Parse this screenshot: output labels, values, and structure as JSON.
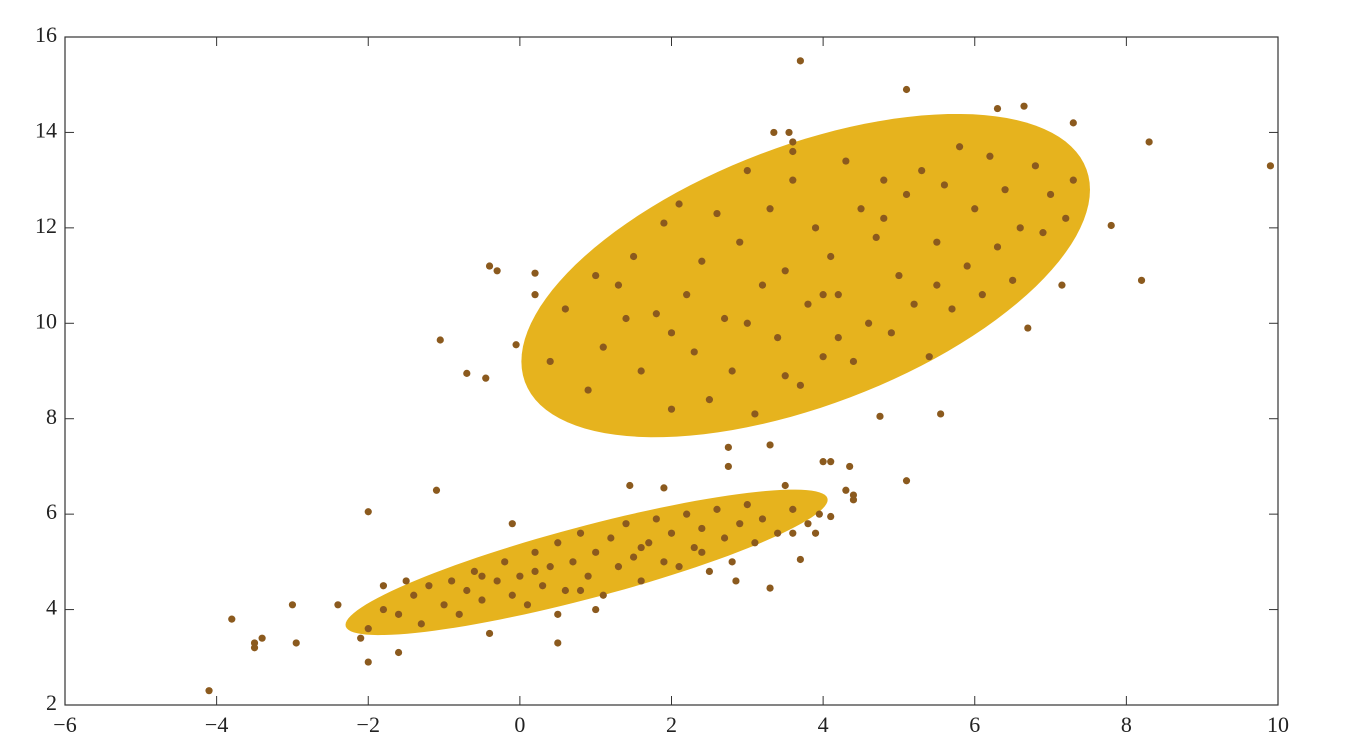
{
  "chart_data": {
    "type": "scatter",
    "color": "#8b5a1e",
    "ellipse_color": "#e6b31e",
    "xlim": [
      -6,
      10
    ],
    "ylim": [
      2,
      16
    ],
    "xticks": [
      {
        "value": -6,
        "label": "−6"
      },
      {
        "value": -4,
        "label": "−4"
      },
      {
        "value": -2,
        "label": "−2"
      },
      0,
      2,
      4,
      6,
      8,
      10
    ],
    "yticks": [
      2,
      4,
      6,
      8,
      10,
      12,
      14,
      16
    ],
    "ellipses": [
      {
        "center": [
          3.77,
          11.0
        ],
        "axis1": [
          3.75,
          1.8
        ],
        "axis2": [
          0,
          2.87
        ]
      },
      {
        "center": [
          0.88,
          4.99
        ],
        "axis1": [
          3.18,
          1.31
        ],
        "axis2": [
          0,
          0.78
        ]
      }
    ],
    "x": [
      -4.1,
      -3.8,
      -3.5,
      -3.5,
      -3.4,
      -3.0,
      -2.95,
      -2.4,
      -2.1,
      -2.0,
      -2.0,
      -1.6,
      -1.8,
      -1.1,
      -1.05,
      -0.7,
      -0.45,
      -0.4,
      -0.3,
      0.2,
      0.2,
      -0.05,
      -0.1,
      0.5,
      3.7,
      5.1,
      6.3,
      6.65,
      7.3,
      8.3,
      9.9,
      7.8,
      8.2,
      7.15,
      6.7,
      5.55,
      4.75,
      3.35,
      3.55,
      3.6,
      3.6,
      2.75,
      2.75,
      3.3,
      4.0,
      4.1,
      4.3,
      4.35,
      4.4,
      4.4,
      5.1,
      3.5,
      3.6,
      1.45,
      1.9,
      2.85,
      3.3,
      3.7,
      3.9,
      4.1,
      3.95,
      0.9,
      1.1,
      1.3,
      1.5,
      1.6,
      1.8,
      1.9,
      2.0,
      2.1,
      2.2,
      2.3,
      2.4,
      2.5,
      2.6,
      2.7,
      2.8,
      2.9,
      3.0,
      3.1,
      3.2,
      3.3,
      3.4,
      3.5,
      3.6,
      3.7,
      3.8,
      3.9,
      4.0,
      4.1,
      4.2,
      4.3,
      4.4,
      4.5,
      4.6,
      4.7,
      4.8,
      4.9,
      5.0,
      5.1,
      5.2,
      5.3,
      5.4,
      5.5,
      5.6,
      5.7,
      5.8,
      5.9,
      6.0,
      6.1,
      6.2,
      6.3,
      6.4,
      6.5,
      6.6,
      6.8,
      6.9,
      7.0,
      7.2,
      7.3,
      0.4,
      0.6,
      1.0,
      2.0,
      3.0,
      4.0,
      4.2,
      3.5,
      5.5,
      4.8,
      1.4,
      -2.0,
      -1.8,
      -1.6,
      -1.4,
      -1.3,
      -1.2,
      -1.0,
      -0.9,
      -0.8,
      -0.7,
      -0.6,
      -0.5,
      -0.4,
      -0.3,
      -0.2,
      -0.1,
      0.0,
      0.1,
      0.2,
      0.3,
      0.4,
      0.5,
      0.6,
      0.7,
      0.8,
      0.9,
      1.0,
      1.1,
      1.2,
      1.3,
      1.4,
      1.5,
      1.6,
      1.7,
      1.8,
      1.9,
      2.0,
      2.1,
      2.2,
      2.3,
      2.4,
      2.5,
      2.6,
      2.7,
      2.8,
      2.9,
      3.0,
      3.1,
      3.2,
      3.4,
      3.6,
      3.8,
      0.5,
      1.0,
      -1.5,
      0.8,
      1.6,
      2.4,
      0.2,
      -0.5
    ],
    "values": [
      2.3,
      3.8,
      3.3,
      3.2,
      3.4,
      4.1,
      3.3,
      4.1,
      3.4,
      2.9,
      6.05,
      3.1,
      4.5,
      6.5,
      9.65,
      8.95,
      8.85,
      11.2,
      11.1,
      11.05,
      10.6,
      9.55,
      5.8,
      3.3,
      15.5,
      14.9,
      14.5,
      14.55,
      14.2,
      13.8,
      13.3,
      12.05,
      10.9,
      10.8,
      9.9,
      8.1,
      8.05,
      14.0,
      14.0,
      13.8,
      13.6,
      7.4,
      7.0,
      7.45,
      7.1,
      7.1,
      6.5,
      7.0,
      6.4,
      6.3,
      6.7,
      6.6,
      5.6,
      6.6,
      6.55,
      4.6,
      4.45,
      5.05,
      5.6,
      5.95,
      6.0,
      8.6,
      9.5,
      10.8,
      11.4,
      9.0,
      10.2,
      12.1,
      8.2,
      12.5,
      10.6,
      9.4,
      11.3,
      8.4,
      12.3,
      10.1,
      9.0,
      11.7,
      13.2,
      8.1,
      10.8,
      12.4,
      9.7,
      11.1,
      13.0,
      8.7,
      10.4,
      12.0,
      9.3,
      11.4,
      10.6,
      13.4,
      9.2,
      12.4,
      10.0,
      11.8,
      13.0,
      9.8,
      11.0,
      12.7,
      10.4,
      13.2,
      9.3,
      11.7,
      12.9,
      10.3,
      13.7,
      11.2,
      12.4,
      10.6,
      13.5,
      11.6,
      12.8,
      10.9,
      12.0,
      13.3,
      11.9,
      12.7,
      12.2,
      13.0,
      9.2,
      10.3,
      11.0,
      9.8,
      10.0,
      10.6,
      9.7,
      8.9,
      10.8,
      12.2,
      10.1,
      3.6,
      4.0,
      3.9,
      4.3,
      3.7,
      4.5,
      4.1,
      4.6,
      3.9,
      4.4,
      4.8,
      4.2,
      3.5,
      4.6,
      5.0,
      4.3,
      4.7,
      4.1,
      5.2,
      4.5,
      4.9,
      5.4,
      4.4,
      5.0,
      5.6,
      4.7,
      5.2,
      4.3,
      5.5,
      4.9,
      5.8,
      5.1,
      4.6,
      5.4,
      5.9,
      5.0,
      5.6,
      4.9,
      6.0,
      5.3,
      5.7,
      4.8,
      6.1,
      5.5,
      5.0,
      5.8,
      6.2,
      5.4,
      5.9,
      5.6,
      6.1,
      5.8,
      3.9,
      4.0,
      4.6,
      4.4,
      5.3,
      5.2,
      4.8,
      4.7
    ]
  }
}
